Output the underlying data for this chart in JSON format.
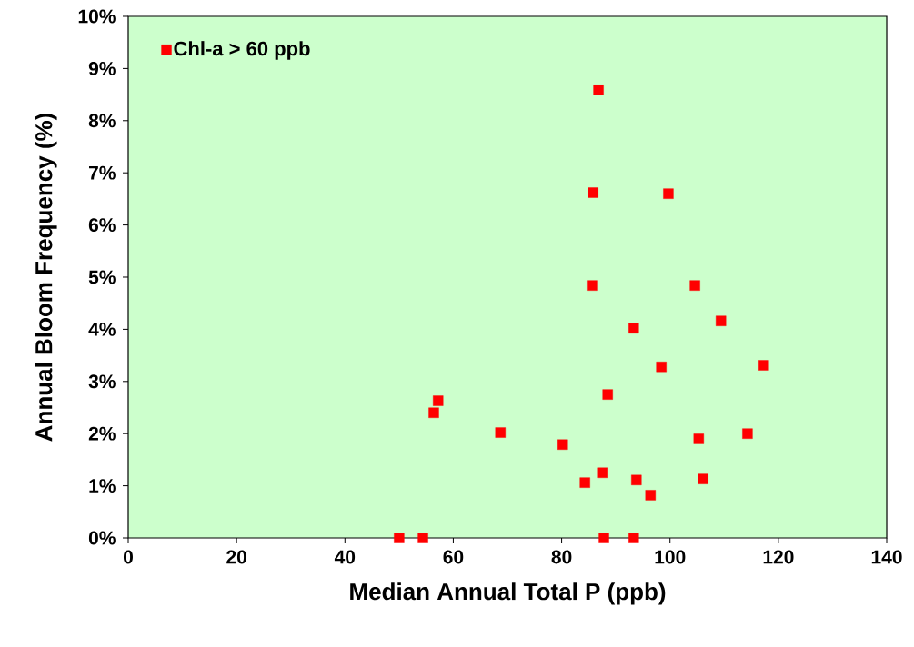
{
  "chart_data": {
    "type": "scatter",
    "xlabel": "Median Annual Total P (ppb)",
    "ylabel": "Annual Bloom Frequency (%)",
    "x": [
      50,
      54.4,
      87.8,
      93.3,
      56.4,
      57.2,
      68.7,
      80.2,
      84.3,
      87.5,
      93.8,
      96.4,
      106.1,
      88.5,
      105.3,
      114.3,
      93.3,
      98.4,
      109.4,
      117.3,
      85.6,
      104.6,
      85.8,
      99.7,
      86.8
    ],
    "series": [
      {
        "name": "Chl-a > 60 ppb",
        "color": "#ff0000",
        "values": [
          0,
          0,
          0,
          0,
          2.4,
          2.63,
          2.02,
          1.79,
          1.06,
          1.25,
          1.11,
          0.82,
          1.13,
          2.75,
          1.9,
          2.0,
          4.02,
          3.28,
          4.16,
          3.31,
          4.84,
          4.84,
          6.62,
          6.6,
          8.59
        ]
      }
    ],
    "xlim": [
      0,
      140
    ],
    "ylim": [
      0,
      10
    ],
    "xticks": [
      0,
      20,
      40,
      60,
      80,
      100,
      120,
      140
    ],
    "yticks": [
      {
        "value": 0,
        "label": "0%"
      },
      {
        "value": 1,
        "label": "1%"
      },
      {
        "value": 2,
        "label": "2%"
      },
      {
        "value": 3,
        "label": "3%"
      },
      {
        "value": 4,
        "label": "4%"
      },
      {
        "value": 5,
        "label": "5%"
      },
      {
        "value": 6,
        "label": "6%"
      },
      {
        "value": 7,
        "label": "7%"
      },
      {
        "value": 8,
        "label": "8%"
      },
      {
        "value": 9,
        "label": "9%"
      },
      {
        "value": 10,
        "label": "10%"
      }
    ],
    "legend": "top left",
    "marker": "square",
    "grid": false
  }
}
